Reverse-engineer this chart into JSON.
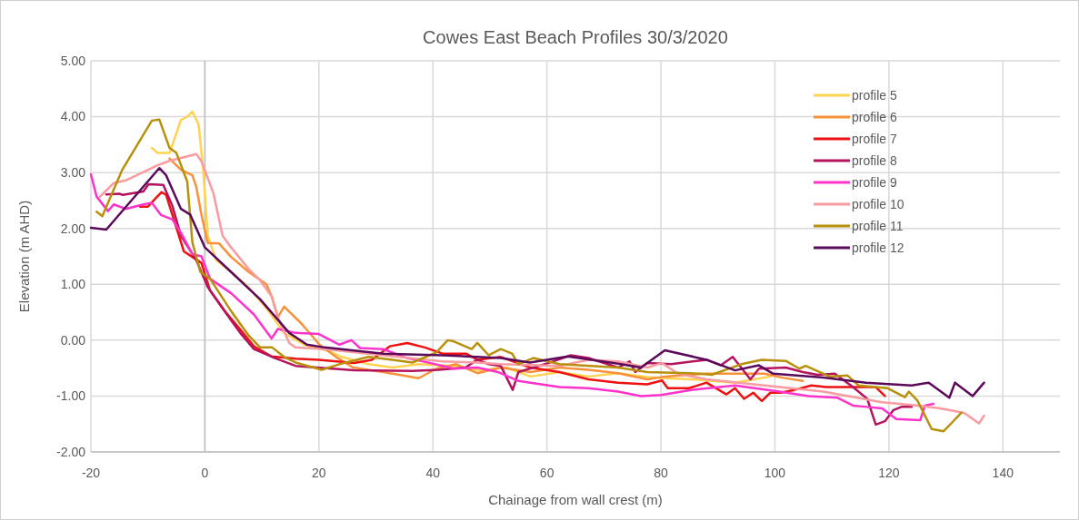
{
  "chart_data": {
    "type": "line",
    "title": "Cowes East Beach Profiles 30/3/2020",
    "xlabel": "Chainage from wall crest (m)",
    "ylabel": "Elevation (m AHD)",
    "xlim": [
      -20,
      150
    ],
    "xticks": [
      -20,
      0,
      20,
      40,
      60,
      80,
      100,
      120,
      140
    ],
    "ylim": [
      -2,
      5
    ],
    "yticks": [
      {
        "value": -2,
        "label": "-2.00"
      },
      {
        "value": -1,
        "label": "-1.00"
      },
      {
        "value": 0,
        "label": "0.00"
      },
      {
        "value": 1,
        "label": "1.00"
      },
      {
        "value": 2,
        "label": "2.00"
      },
      {
        "value": 3,
        "label": "3.00"
      },
      {
        "value": 4,
        "label": "4.00"
      },
      {
        "value": 5,
        "label": "5.00"
      }
    ],
    "grid": true,
    "legend": "top right",
    "marker": "none",
    "line_style": "solid",
    "series": [
      {
        "name": "profile 5",
        "color": "#ffd34f",
        "x": [
          -9.3,
          -8.3,
          -6.2,
          -4.2,
          -3.1,
          -2.2,
          -1.1,
          -0.3,
          0.5,
          2,
          4.6,
          7.7,
          10.8,
          13.9,
          17.4,
          21.6,
          24,
          28.7,
          32.9,
          37.5,
          43.2,
          48.3,
          52.9,
          57.1,
          62.2,
          67.3,
          72.5,
          77.6,
          81,
          85.3,
          93,
          99.2
        ],
        "values": [
          3.44,
          3.35,
          3.35,
          3.94,
          4.0,
          4.09,
          3.86,
          3.05,
          1.87,
          1.43,
          1.22,
          0.94,
          0.57,
          0.13,
          -0.08,
          -0.19,
          -0.3,
          -0.43,
          -0.49,
          -0.43,
          -0.46,
          -0.54,
          -0.49,
          -0.65,
          -0.57,
          -0.65,
          -0.59,
          -0.66,
          -0.68,
          -0.7,
          -0.76,
          -0.65
        ]
      },
      {
        "name": "profile 6",
        "color": "#f7923a",
        "x": [
          -6.2,
          -4.2,
          -2.2,
          -1.5,
          -0.6,
          0.5,
          2.5,
          4.6,
          7.7,
          10.8,
          11.8,
          12.8,
          13.9,
          17,
          20.1,
          23,
          26,
          31.3,
          37.5,
          40.6,
          44.1,
          47.8,
          51.9,
          57.1,
          62.2,
          67.3,
          72.5,
          77.6,
          80.7,
          84.9,
          88,
          93,
          98.2,
          101.3,
          104.9
        ],
        "values": [
          3.25,
          3.05,
          2.95,
          2.74,
          2.24,
          1.74,
          1.73,
          1.49,
          1.22,
          1.0,
          0.76,
          0.41,
          0.6,
          0.29,
          -0.08,
          -0.3,
          -0.49,
          -0.57,
          -0.68,
          -0.51,
          -0.43,
          -0.59,
          -0.49,
          -0.57,
          -0.49,
          -0.53,
          -0.59,
          -0.7,
          -0.65,
          -0.62,
          -0.6,
          -0.6,
          -0.6,
          -0.67,
          -0.73
        ]
      },
      {
        "name": "profile 7",
        "color": "#ee1111",
        "x": [
          -11.4,
          -10,
          -9.1,
          -7.6,
          -6.8,
          -5.2,
          -3.7,
          -2.2,
          -0.6,
          0.9,
          3.5,
          6.2,
          8.6,
          11.7,
          15.9,
          20,
          26.2,
          29.3,
          32.4,
          35.5,
          38.6,
          41.7,
          45.8,
          47.8,
          51.9,
          57.1,
          62.2,
          67.3,
          72.5,
          77.6,
          80.2,
          81.2,
          84.9,
          88,
          91.5,
          93,
          94.6,
          96.2,
          97.7,
          99.2,
          101,
          103.4,
          106.4,
          109,
          112.7,
          115,
          117.7,
          119.3
        ],
        "values": [
          2.39,
          2.39,
          2.49,
          2.65,
          2.6,
          2.08,
          1.59,
          1.49,
          1.38,
          0.89,
          0.52,
          0.19,
          -0.11,
          -0.29,
          -0.33,
          -0.35,
          -0.41,
          -0.35,
          -0.11,
          -0.05,
          -0.13,
          -0.24,
          -0.24,
          -0.35,
          -0.3,
          -0.49,
          -0.57,
          -0.7,
          -0.76,
          -0.79,
          -0.72,
          -0.86,
          -0.86,
          -0.76,
          -0.97,
          -0.86,
          -1.05,
          -0.94,
          -1.09,
          -0.94,
          -0.94,
          -0.89,
          -0.81,
          -0.84,
          -0.84,
          -0.84,
          -0.84,
          -1.0
        ]
      },
      {
        "name": "profile 8",
        "color": "#b5135e",
        "x": [
          -17.3,
          -15,
          -14.4,
          -10.8,
          -9.9,
          -7.3,
          -5.7,
          -4.2,
          -1.5,
          0.5,
          3.1,
          6.2,
          8.6,
          12.3,
          15.9,
          26.2,
          36.4,
          41,
          45.7,
          47.8,
          49.8,
          51.9,
          54,
          55,
          60.2,
          64.2,
          67.3,
          72.5,
          74.5,
          75.5,
          77.6,
          81.8,
          88,
          90.5,
          92.6,
          95.7,
          97.2,
          101.9,
          104.9,
          107.5,
          110.5,
          113.7,
          116.2,
          117.7,
          119.3,
          120.8,
          122.3,
          124
        ],
        "values": [
          2.61,
          2.62,
          2.6,
          2.66,
          2.79,
          2.78,
          2.4,
          1.87,
          1.43,
          0.95,
          0.57,
          0.13,
          -0.16,
          -0.32,
          -0.46,
          -0.54,
          -0.55,
          -0.53,
          -0.49,
          -0.35,
          -0.43,
          -0.46,
          -0.89,
          -0.57,
          -0.41,
          -0.27,
          -0.32,
          -0.49,
          -0.38,
          -0.57,
          -0.41,
          -0.43,
          -0.35,
          -0.45,
          -0.3,
          -0.7,
          -0.51,
          -0.49,
          -0.57,
          -0.62,
          -0.6,
          -0.84,
          -1.05,
          -1.51,
          -1.45,
          -1.25,
          -1.19,
          -1.19
        ]
      },
      {
        "name": "profile 9",
        "color": "#ff33cc",
        "x": [
          -20,
          -19,
          -17,
          -16,
          -13.9,
          -10.8,
          -9.3,
          -7.7,
          -5.7,
          -4.2,
          -2.2,
          -0.6,
          0.9,
          4.6,
          8.6,
          11.7,
          12.8,
          15.9,
          20,
          23.6,
          25.7,
          27.2,
          31.3,
          35.5,
          39.6,
          43.7,
          47.8,
          51.4,
          55,
          62.2,
          67.3,
          72.5,
          76.5,
          80,
          85.3,
          93,
          100.8,
          105.9,
          111,
          113.7,
          115.7,
          118.8,
          121.3,
          125.5,
          126.3,
          127.8
        ],
        "values": [
          2.97,
          2.57,
          2.31,
          2.43,
          2.35,
          2.43,
          2.46,
          2.24,
          2.16,
          1.92,
          1.54,
          1.5,
          1.1,
          0.84,
          0.46,
          0.03,
          0.2,
          0.13,
          0.11,
          -0.08,
          0.0,
          -0.14,
          -0.16,
          -0.32,
          -0.41,
          -0.51,
          -0.49,
          -0.57,
          -0.73,
          -0.84,
          -0.86,
          -0.92,
          -1.0,
          -0.98,
          -0.89,
          -0.81,
          -0.92,
          -1.0,
          -1.03,
          -1.17,
          -1.19,
          -1.22,
          -1.41,
          -1.43,
          -1.17,
          -1.14
        ]
      },
      {
        "name": "profile 10",
        "color": "#f99ba0",
        "x": [
          -18.4,
          -16,
          -13.9,
          -8.3,
          -6.2,
          -1.5,
          -0.6,
          1.5,
          3.1,
          4.6,
          7.7,
          9.7,
          11.7,
          12.8,
          14.8,
          15.9,
          21,
          31.3,
          41.7,
          47.8,
          51.9,
          62.2,
          67.3,
          72.5,
          77.6,
          80.2,
          83,
          88,
          98.2,
          108.5,
          118.8,
          124,
          129,
          133.2,
          135.8,
          136.7
        ],
        "values": [
          2.57,
          2.81,
          2.86,
          3.13,
          3.21,
          3.33,
          3.2,
          2.63,
          1.87,
          1.66,
          1.27,
          1.07,
          0.78,
          0.41,
          -0.05,
          -0.13,
          -0.16,
          -0.27,
          -0.38,
          -0.4,
          -0.43,
          -0.46,
          -0.35,
          -0.38,
          -0.49,
          -0.41,
          -0.6,
          -0.7,
          -0.81,
          -0.92,
          -1.11,
          -1.16,
          -1.22,
          -1.3,
          -1.49,
          -1.35
        ]
      },
      {
        "name": "profile 11",
        "color": "#b8900c",
        "x": [
          -19,
          -18,
          -14.5,
          -9.3,
          -8,
          -6.2,
          -5,
          -3.1,
          -2.2,
          -0.8,
          0.9,
          4.6,
          7.7,
          9.7,
          11.8,
          13.9,
          15.9,
          20.5,
          23.6,
          28.7,
          32.9,
          36.4,
          40.6,
          42.6,
          43.6,
          46.8,
          47.8,
          49.8,
          51.9,
          53.9,
          55,
          57.6,
          62.2,
          72.5,
          77.6,
          84.9,
          86.9,
          88.9,
          94.1,
          97.7,
          101.9,
          104.3,
          105.4,
          109.6,
          112.7,
          114.7,
          119.8,
          122.8,
          123.5,
          125,
          127.5,
          129.6,
          131.2,
          132.7
        ],
        "values": [
          2.3,
          2.22,
          3.05,
          3.93,
          3.95,
          3.44,
          3.35,
          2.84,
          1.75,
          1.22,
          1.1,
          0.52,
          0.08,
          -0.13,
          -0.13,
          -0.3,
          -0.4,
          -0.53,
          -0.43,
          -0.3,
          -0.35,
          -0.4,
          -0.22,
          0.0,
          -0.02,
          -0.16,
          -0.05,
          -0.27,
          -0.16,
          -0.24,
          -0.43,
          -0.32,
          -0.43,
          -0.49,
          -0.57,
          -0.59,
          -0.6,
          -0.62,
          -0.43,
          -0.35,
          -0.37,
          -0.51,
          -0.46,
          -0.65,
          -0.63,
          -0.81,
          -0.86,
          -1.02,
          -0.92,
          -1.08,
          -1.59,
          -1.63,
          -1.46,
          -1.3
        ]
      },
      {
        "name": "profile 12",
        "color": "#5b0a5b",
        "x": [
          -20,
          -17.3,
          -8,
          -6.8,
          -4.2,
          -2.6,
          0,
          4.6,
          9.7,
          14.8,
          17.9,
          21,
          31.3,
          41.7,
          51.9,
          57,
          63.7,
          72.5,
          76.5,
          80.7,
          88,
          93,
          97.2,
          99.7,
          108.5,
          116,
          124,
          127,
          130.6,
          131.6,
          134.7,
          136.7
        ],
        "values": [
          2.01,
          1.98,
          3.08,
          2.95,
          2.35,
          2.25,
          1.66,
          1.22,
          0.73,
          0.13,
          -0.08,
          -0.13,
          -0.24,
          -0.27,
          -0.32,
          -0.4,
          -0.29,
          -0.42,
          -0.49,
          -0.18,
          -0.35,
          -0.54,
          -0.45,
          -0.6,
          -0.67,
          -0.76,
          -0.81,
          -0.76,
          -1.03,
          -0.76,
          -1.0,
          -0.76
        ]
      }
    ]
  }
}
